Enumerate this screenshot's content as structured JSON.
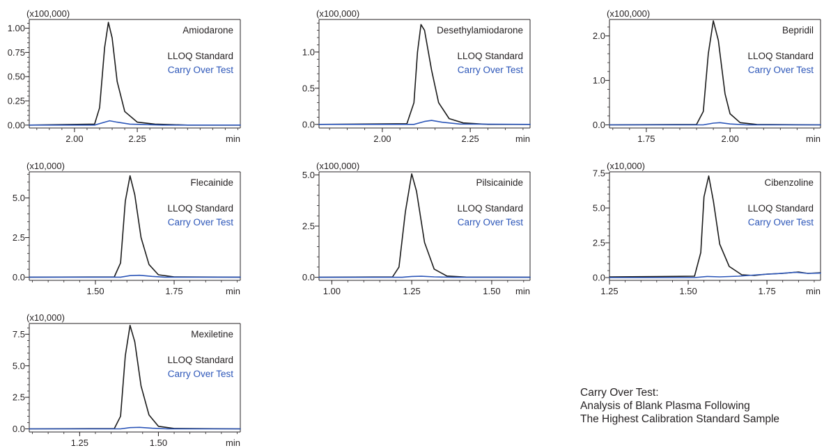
{
  "series_labels": {
    "standard": "LLOQ Standard",
    "carry": "Carry Over Test"
  },
  "colors": {
    "standard": "#1a1a1a",
    "carry": "#2b55b8",
    "axis": "#231f20",
    "text": "#231f20"
  },
  "note": {
    "line1": "Carry Over Test:",
    "line2": "Analysis of Blank Plasma Following",
    "line3": "The Highest Calibration Standard Sample"
  },
  "chart_data": [
    {
      "type": "line",
      "title": "Amiodarone",
      "multiplier": "(x100,000)",
      "xunit": "min",
      "xlim": [
        1.82,
        2.66
      ],
      "ylim": [
        -0.03,
        1.09
      ],
      "xticks": [
        2.0,
        2.25
      ],
      "xtick_labels": [
        "2.00",
        "2.25"
      ],
      "yticks": [
        0.0,
        0.25,
        0.5,
        0.75,
        1.0
      ],
      "ytick_labels": [
        "0.00",
        "0.25",
        "0.50",
        "0.75",
        "1.00"
      ],
      "series": [
        {
          "name": "LLOQ Standard",
          "x": [
            1.82,
            2.08,
            2.1,
            2.12,
            2.135,
            2.15,
            2.17,
            2.2,
            2.25,
            2.32,
            2.45,
            2.66
          ],
          "y": [
            0.0,
            0.01,
            0.18,
            0.8,
            1.06,
            0.9,
            0.45,
            0.14,
            0.03,
            0.01,
            0.0,
            0.0
          ]
        },
        {
          "name": "Carry Over Test",
          "x": [
            1.82,
            2.08,
            2.12,
            2.14,
            2.17,
            2.22,
            2.35,
            2.66
          ],
          "y": [
            0.0,
            0.0,
            0.03,
            0.045,
            0.03,
            0.01,
            0.0,
            0.0
          ]
        }
      ]
    },
    {
      "type": "line",
      "title": "Desethylamiodarone",
      "multiplier": "(x100,000)",
      "xunit": "min",
      "xlim": [
        1.82,
        2.42
      ],
      "ylim": [
        -0.05,
        1.45
      ],
      "xticks": [
        2.0,
        2.25
      ],
      "xtick_labels": [
        "2.00",
        "2.25"
      ],
      "yticks": [
        0.0,
        0.5,
        1.0
      ],
      "ytick_labels": [
        "0.0",
        "0.5",
        "1.0"
      ],
      "series": [
        {
          "name": "LLOQ Standard",
          "x": [
            1.82,
            2.07,
            2.09,
            2.1,
            2.11,
            2.12,
            2.14,
            2.16,
            2.19,
            2.23,
            2.3,
            2.42
          ],
          "y": [
            0.0,
            0.01,
            0.3,
            1.0,
            1.38,
            1.3,
            0.75,
            0.3,
            0.08,
            0.02,
            0.0,
            0.0
          ]
        },
        {
          "name": "Carry Over Test",
          "x": [
            1.82,
            2.09,
            2.12,
            2.14,
            2.17,
            2.22,
            2.42
          ],
          "y": [
            0.0,
            0.0,
            0.04,
            0.055,
            0.03,
            0.005,
            0.0
          ]
        }
      ]
    },
    {
      "type": "line",
      "title": "Bepridil",
      "multiplier": "(x100,000)",
      "xunit": "min",
      "xlim": [
        1.64,
        2.27
      ],
      "ylim": [
        -0.07,
        2.37
      ],
      "xticks": [
        1.75,
        2.0
      ],
      "xtick_labels": [
        "1.75",
        "2.00"
      ],
      "yticks": [
        0.0,
        1.0,
        2.0
      ],
      "ytick_labels": [
        "0.0",
        "1.0",
        "2.0"
      ],
      "series": [
        {
          "name": "LLOQ Standard",
          "x": [
            1.64,
            1.9,
            1.92,
            1.935,
            1.95,
            1.965,
            1.985,
            2.0,
            2.03,
            2.08,
            2.27
          ],
          "y": [
            0.0,
            0.01,
            0.3,
            1.6,
            2.34,
            1.9,
            0.7,
            0.25,
            0.05,
            0.01,
            0.0
          ]
        },
        {
          "name": "Carry Over Test",
          "x": [
            1.64,
            1.92,
            1.95,
            1.97,
            2.0,
            2.05,
            2.27
          ],
          "y": [
            0.0,
            0.0,
            0.04,
            0.05,
            0.02,
            0.0,
            0.0
          ]
        }
      ]
    },
    {
      "type": "line",
      "title": "Flecainide",
      "multiplier": "(x10,000)",
      "xunit": "min",
      "xlim": [
        1.29,
        1.96
      ],
      "ylim": [
        -0.2,
        6.65
      ],
      "xticks": [
        1.5,
        1.75
      ],
      "xtick_labels": [
        "1.50",
        "1.75"
      ],
      "yticks": [
        0.0,
        2.5,
        5.0
      ],
      "ytick_labels": [
        "0.0",
        "2.5",
        "5.0"
      ],
      "series": [
        {
          "name": "LLOQ Standard",
          "x": [
            1.29,
            1.56,
            1.58,
            1.595,
            1.61,
            1.625,
            1.645,
            1.67,
            1.7,
            1.75,
            1.96
          ],
          "y": [
            0.0,
            0.02,
            0.9,
            4.8,
            6.4,
            5.2,
            2.5,
            0.8,
            0.15,
            0.02,
            0.0
          ]
        },
        {
          "name": "Carry Over Test",
          "x": [
            1.29,
            1.58,
            1.61,
            1.64,
            1.68,
            1.72,
            1.96
          ],
          "y": [
            0.0,
            0.0,
            0.1,
            0.12,
            0.05,
            0.0,
            0.0
          ]
        }
      ]
    },
    {
      "type": "line",
      "title": "Pilsicainide",
      "multiplier": "(x100,000)",
      "xunit": "min",
      "xlim": [
        0.96,
        1.62
      ],
      "ylim": [
        -0.15,
        5.15
      ],
      "xticks": [
        1.0,
        1.25,
        1.5
      ],
      "xtick_labels": [
        "1.00",
        "1.25",
        "1.50"
      ],
      "yticks": [
        0.0,
        2.5,
        5.0
      ],
      "ytick_labels": [
        "0.0",
        "2.5",
        "5.0"
      ],
      "series": [
        {
          "name": "LLOQ Standard",
          "x": [
            0.96,
            1.19,
            1.21,
            1.23,
            1.25,
            1.265,
            1.29,
            1.32,
            1.36,
            1.42,
            1.62
          ],
          "y": [
            0.0,
            0.02,
            0.5,
            3.2,
            5.05,
            4.2,
            1.7,
            0.4,
            0.06,
            0.01,
            0.0
          ]
        },
        {
          "name": "Carry Over Test",
          "x": [
            0.96,
            1.22,
            1.25,
            1.28,
            1.32,
            1.38,
            1.62
          ],
          "y": [
            0.0,
            0.0,
            0.04,
            0.05,
            0.02,
            0.0,
            0.0
          ]
        }
      ]
    },
    {
      "type": "line",
      "title": "Cibenzoline",
      "multiplier": "(x10,000)",
      "xunit": "min",
      "xlim": [
        1.25,
        1.92
      ],
      "ylim": [
        -0.2,
        7.6
      ],
      "xticks": [
        1.25,
        1.5,
        1.75
      ],
      "xtick_labels": [
        "1.25",
        "1.50",
        "1.75"
      ],
      "yticks": [
        0.0,
        2.5,
        5.0,
        7.5
      ],
      "ytick_labels": [
        "0.0",
        "2.5",
        "5.0",
        "7.5"
      ],
      "series": [
        {
          "name": "LLOQ Standard",
          "x": [
            1.25,
            1.4,
            1.52,
            1.54,
            1.55,
            1.565,
            1.58,
            1.6,
            1.63,
            1.67,
            1.71,
            1.75,
            1.8,
            1.85,
            1.88,
            1.92
          ],
          "y": [
            0.05,
            0.07,
            0.1,
            1.8,
            5.8,
            7.3,
            5.5,
            2.4,
            0.8,
            0.2,
            0.15,
            0.25,
            0.3,
            0.4,
            0.3,
            0.35
          ]
        },
        {
          "name": "Carry Over Test",
          "x": [
            1.25,
            1.52,
            1.56,
            1.6,
            1.66,
            1.72,
            1.78,
            1.84,
            1.88,
            1.92
          ],
          "y": [
            0.0,
            0.0,
            0.08,
            0.05,
            0.1,
            0.2,
            0.28,
            0.38,
            0.3,
            0.32
          ]
        }
      ]
    },
    {
      "type": "line",
      "title": "Mexiletine",
      "multiplier": "(x10,000)",
      "xunit": "min",
      "xlim": [
        1.09,
        1.76
      ],
      "ylim": [
        -0.25,
        8.35
      ],
      "xticks": [
        1.25,
        1.5
      ],
      "xtick_labels": [
        "1.25",
        "1.50"
      ],
      "yticks": [
        0.0,
        2.5,
        5.0,
        7.5
      ],
      "ytick_labels": [
        "0.0",
        "2.5",
        "5.0",
        "7.5"
      ],
      "series": [
        {
          "name": "LLOQ Standard",
          "x": [
            1.09,
            1.36,
            1.38,
            1.395,
            1.41,
            1.425,
            1.445,
            1.47,
            1.5,
            1.55,
            1.76
          ],
          "y": [
            0.0,
            0.02,
            1.0,
            5.8,
            8.2,
            6.9,
            3.4,
            1.1,
            0.2,
            0.03,
            0.0
          ]
        },
        {
          "name": "Carry Over Test",
          "x": [
            1.09,
            1.38,
            1.41,
            1.44,
            1.48,
            1.53,
            1.76
          ],
          "y": [
            0.0,
            0.0,
            0.1,
            0.12,
            0.05,
            0.0,
            0.0
          ]
        }
      ]
    }
  ]
}
